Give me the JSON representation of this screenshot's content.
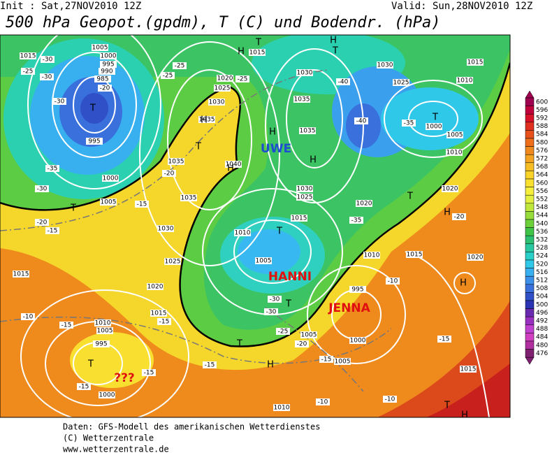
{
  "header": {
    "init": "Init : Sat,27NOV2010 12Z",
    "valid": "Valid: Sun,28NOV2010 12Z",
    "title": "500 hPa Geopot.(gpdm), T (C) und Bodendr. (hPa)"
  },
  "map": {
    "systems": [
      "UWE",
      "HANNI",
      "JENNA",
      "???"
    ],
    "pressure_centers": [
      "H",
      "H",
      "T",
      "T",
      "T",
      "H",
      "T",
      "H",
      "H",
      "H",
      "T",
      "T",
      "T",
      "T",
      "H",
      "H",
      "T",
      "H",
      "T",
      "T",
      "T",
      "H"
    ],
    "isobar_labels": [
      1015,
      1005,
      1000,
      995,
      990,
      985,
      995,
      1000,
      1005,
      1015,
      1020,
      1025,
      1030,
      1035,
      1035,
      1040,
      1035,
      1030,
      1025,
      1020,
      1015,
      1030,
      1035,
      1035,
      1030,
      1025,
      1020,
      1015,
      1010,
      1005,
      1030,
      1025,
      1015,
      1010,
      1000,
      1005,
      1010,
      1020,
      1010,
      1015,
      1020,
      1015,
      1010,
      1005,
      995,
      1000,
      995,
      1000,
      1005,
      1005,
      1010,
      1015
    ],
    "temperature_labels": [
      -25,
      -30,
      -30,
      -20,
      -30,
      -35,
      -30,
      -20,
      -15,
      -15,
      -20,
      -25,
      -25,
      -25,
      -40,
      -40,
      -35,
      -35,
      -20,
      -10,
      -30,
      -30,
      -25,
      -20,
      -15,
      -10,
      -15,
      -15,
      -15,
      -15,
      -15,
      -10,
      -10,
      -15
    ]
  },
  "colorbar": {
    "levels": [
      600,
      596,
      592,
      588,
      584,
      580,
      576,
      572,
      568,
      564,
      560,
      556,
      552,
      548,
      544,
      540,
      536,
      532,
      528,
      524,
      520,
      516,
      512,
      508,
      504,
      500,
      496,
      492,
      488,
      484,
      480,
      476
    ],
    "colors": [
      "#a00050",
      "#c0003c",
      "#d8102a",
      "#e03020",
      "#e8501c",
      "#ee6e1a",
      "#f08a1e",
      "#f4a420",
      "#f7bd24",
      "#f9d22a",
      "#fae030",
      "#f5ee3a",
      "#e4f040",
      "#c0e83c",
      "#96dc3a",
      "#6cd03a",
      "#40c448",
      "#2cc070",
      "#28c8a0",
      "#28d0c8",
      "#30c8e8",
      "#38b0f0",
      "#3c90ea",
      "#3a70dc",
      "#3050c8",
      "#2a34b4",
      "#6a2ab0",
      "#9a30c0",
      "#c040d0",
      "#d040c0",
      "#b030a0",
      "#802070"
    ]
  },
  "footer": {
    "lines": [
      "Daten: GFS-Modell des amerikanischen Wetterdienstes",
      "(C) Wetterzentrale",
      "www.wetterzentrale.de"
    ]
  }
}
